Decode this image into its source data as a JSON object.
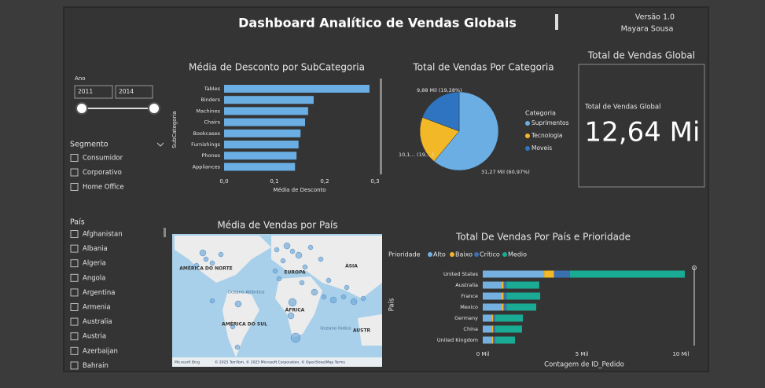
{
  "header": {
    "title": "Dashboard Analítico de Vendas Globais",
    "version": "Versão 1.0",
    "author": "Mayara Sousa"
  },
  "year_slicer": {
    "label": "Ano",
    "start": "2011",
    "end": "2014"
  },
  "segment_slicer": {
    "label": "Segmento",
    "options": [
      "Consumidor",
      "Corporativo",
      "Home Office"
    ]
  },
  "country_slicer": {
    "label": "País",
    "options": [
      "Afghanistan",
      "Albania",
      "Algeria",
      "Angola",
      "Argentina",
      "Armenia",
      "Australia",
      "Austria",
      "Azerbaijan",
      "Bahrain"
    ]
  },
  "card": {
    "title": "Total de Vendas Global",
    "label": "Total de Vendas Global",
    "value": "12,64 Mi"
  },
  "map": {
    "title": "Média de Vendas por País",
    "labels": [
      "AMÉRICA DO NORTE",
      "EUROPA",
      "ÁSIA",
      "Oceano Atlântico",
      "ÁFRICA",
      "AMÉRICA DO SUL",
      "Oceano Índico",
      "AUSTR"
    ],
    "attribution": "© 2025 TomTom, © 2025 Microsoft Corporation, © OpenStreetMap  Terms",
    "logo": "Microsoft Bing"
  },
  "chart_data": [
    {
      "type": "bar",
      "title": "Média de Desconto por SubCategoria",
      "x_label": "Média de Desconto",
      "y_label": "SubCategoria",
      "categories": [
        "Tables",
        "Binders",
        "Machines",
        "Chairs",
        "Bookcases",
        "Furnishings",
        "Phones",
        "Appliances"
      ],
      "values": [
        0.289,
        0.178,
        0.167,
        0.161,
        0.152,
        0.148,
        0.144,
        0.141
      ],
      "color": "#6aaee3",
      "xlim": [
        0,
        0.3
      ],
      "xticks": [
        {
          "value": 0,
          "label": "0,0"
        },
        {
          "value": 0.1,
          "label": "0,1"
        },
        {
          "value": 0.2,
          "label": "0,2"
        },
        {
          "value": 0.3,
          "label": "0,3"
        }
      ]
    },
    {
      "type": "pie",
      "title": "Total de Vendas Por Categoria",
      "legend_title": "Categoria",
      "categories": [
        "Suprimentos",
        "Tecnologia",
        "Moveis"
      ],
      "values": [
        31.27,
        10.1,
        9.88
      ],
      "value_labels": [
        "31,27 Mil (60,97%)",
        "10,1… (19,…)",
        "9,88 Mil (19,28%)"
      ],
      "colors": [
        "#6aaee3",
        "#f2b827",
        "#2f74c0"
      ]
    },
    {
      "type": "stacked_bar",
      "title": "Total De Vendas Por País e Prioridade",
      "legend_title": "Prioridade",
      "x_label": "Contagem de ID_Pedido",
      "y_label": "País",
      "categories": [
        "United States",
        "Australia",
        "France",
        "Mexico",
        "Germany",
        "China",
        "United Kingdom"
      ],
      "series": [
        {
          "name": "Alto",
          "color": "#74b0e0",
          "values": [
            3.1,
            0.95,
            0.95,
            0.95,
            0.45,
            0.45,
            0.45
          ]
        },
        {
          "name": "Baixo",
          "color": "#f2b827",
          "values": [
            0.5,
            0.1,
            0.1,
            0.1,
            0.08,
            0.08,
            0.08
          ]
        },
        {
          "name": "Crítico",
          "color": "#3a6fb0",
          "values": [
            0.8,
            0.15,
            0.15,
            0.15,
            0.1,
            0.1,
            0.1
          ]
        },
        {
          "name": "Medio",
          "color": "#1aab95",
          "values": [
            5.8,
            1.65,
            1.7,
            1.5,
            1.4,
            1.35,
            1.0
          ]
        }
      ],
      "xlim": [
        0,
        10
      ],
      "xticks": [
        {
          "value": 0,
          "label": "0 Mil"
        },
        {
          "value": 5,
          "label": "5 Mil"
        },
        {
          "value": 10,
          "label": "10 Mil"
        }
      ]
    }
  ]
}
